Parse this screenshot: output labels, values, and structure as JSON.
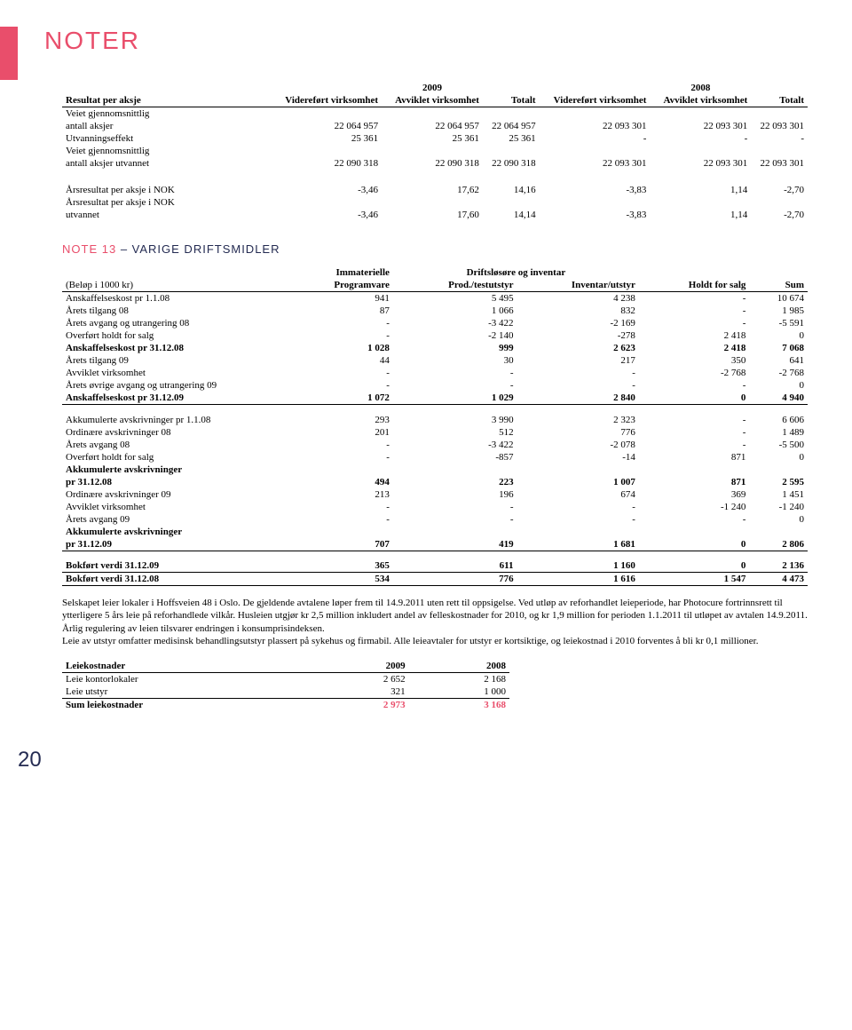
{
  "title": "NOTER",
  "pageNumber": "20",
  "colors": {
    "accent": "#e94e6b",
    "navy": "#242b52"
  },
  "table1": {
    "super2009": "2009",
    "super2008": "2008",
    "headers": [
      "Resultat per aksje",
      "Videreført virksomhet",
      "Avviklet virksomhet",
      "Totalt",
      "Videreført virksomhet",
      "Avviklet virksomhet",
      "Totalt"
    ],
    "rows": [
      {
        "label": "Veiet gjennomsnittlig",
        "sub": true
      },
      {
        "label": "antall aksjer",
        "vals": [
          "22 064 957",
          "22 064 957",
          "22 064 957",
          "22 093 301",
          "22 093 301",
          "22 093 301"
        ]
      },
      {
        "label": "Utvanningseffekt",
        "vals": [
          "25 361",
          "25 361",
          "25 361",
          "-",
          "-",
          "-"
        ]
      },
      {
        "label": "Veiet gjennomsnittlig",
        "sub": true
      },
      {
        "label": "antall aksjer utvannet",
        "vals": [
          "22 090 318",
          "22 090 318",
          "22 090 318",
          "22 093 301",
          "22 093 301",
          "22 093 301"
        ]
      }
    ],
    "rows2": [
      {
        "label": "Årsresultat per aksje i NOK",
        "vals": [
          "-3,46",
          "17,62",
          "14,16",
          "-3,83",
          "1,14",
          "-2,70"
        ]
      },
      {
        "label": "Årsresultat per aksje i NOK",
        "sub": true
      },
      {
        "label": "utvannet",
        "vals": [
          "-3,46",
          "17,60",
          "14,14",
          "-3,83",
          "1,14",
          "-2,70"
        ]
      }
    ]
  },
  "note13": {
    "prefix": "NOTE 13",
    "suffix": "– VARIGE DRIFTSMIDLER",
    "headers": {
      "belop": "(Beløp i 1000 kr)",
      "immat": "Immaterielle",
      "program": "Programvare",
      "driftSuper": "Driftsløsøre og inventar",
      "prod": "Prod./testutstyr",
      "inv": "Inventar/utstyr",
      "holdt": "Holdt for salg",
      "sum": "Sum"
    },
    "block1": [
      {
        "l": "Anskaffelseskost pr 1.1.08",
        "v": [
          "941",
          "5 495",
          "4 238",
          "-",
          "10 674"
        ]
      },
      {
        "l": "Årets tilgang 08",
        "v": [
          "87",
          "1 066",
          "832",
          "-",
          "1 985"
        ]
      },
      {
        "l": "Årets avgang og utrangering 08",
        "v": [
          "-",
          "-3 422",
          "-2 169",
          "-",
          "-5 591"
        ]
      },
      {
        "l": "Overført holdt for salg",
        "v": [
          "-",
          "-2 140",
          "-278",
          "2 418",
          "0"
        ]
      },
      {
        "l": "Anskaffelseskost pr 31.12.08",
        "v": [
          "1 028",
          "999",
          "2 623",
          "2 418",
          "7 068"
        ],
        "b": true
      },
      {
        "l": "Årets tilgang 09",
        "v": [
          "44",
          "30",
          "217",
          "350",
          "641"
        ]
      },
      {
        "l": "Avviklet virksomhet",
        "v": [
          "-",
          "-",
          "-",
          "-2 768",
          "-2 768"
        ]
      },
      {
        "l": "Årets øvrige avgang og utrangering 09",
        "v": [
          "-",
          "-",
          "-",
          "-",
          "0"
        ]
      },
      {
        "l": "Anskaffelseskost pr 31.12.09",
        "v": [
          "1 072",
          "1 029",
          "2 840",
          "0",
          "4 940"
        ],
        "b": true,
        "rule": true
      }
    ],
    "block2": [
      {
        "l": "Akkumulerte avskrivninger pr 1.1.08",
        "v": [
          "293",
          "3 990",
          "2 323",
          "-",
          "6 606"
        ]
      },
      {
        "l": "Ordinære avskrivninger 08",
        "v": [
          "201",
          "512",
          "776",
          "-",
          "1 489"
        ]
      },
      {
        "l": "Årets avgang 08",
        "v": [
          "-",
          "-3 422",
          "-2 078",
          "-",
          "-5 500"
        ]
      },
      {
        "l": "Overført holdt for salg",
        "v": [
          "-",
          "-857",
          "-14",
          "871",
          "0"
        ]
      },
      {
        "l": "Akkumulerte avskrivninger",
        "sub": true,
        "b": true
      },
      {
        "l": "pr 31.12.08",
        "v": [
          "494",
          "223",
          "1 007",
          "871",
          "2 595"
        ],
        "b": true
      },
      {
        "l": "Ordinære avskrivninger 09",
        "v": [
          "213",
          "196",
          "674",
          "369",
          "1 451"
        ]
      },
      {
        "l": "Avviklet virksomhet",
        "v": [
          "-",
          "-",
          "-",
          "-1 240",
          "-1 240"
        ]
      },
      {
        "l": "Årets avgang 09",
        "v": [
          "-",
          "-",
          "-",
          "-",
          "0"
        ]
      },
      {
        "l": "Akkumulerte avskrivninger",
        "sub": true,
        "b": true
      },
      {
        "l": "pr 31.12.09",
        "v": [
          "707",
          "419",
          "1 681",
          "0",
          "2 806"
        ],
        "b": true,
        "rule": true
      }
    ],
    "block3": [
      {
        "l": "Bokført verdi 31.12.09",
        "v": [
          "365",
          "611",
          "1 160",
          "0",
          "2 136"
        ],
        "b": true,
        "rule": true
      },
      {
        "l": "Bokført verdi 31.12.08",
        "v": [
          "534",
          "776",
          "1 616",
          "1 547",
          "4 473"
        ],
        "b": true,
        "rule": true
      }
    ]
  },
  "para": "Selskapet leier lokaler i Hoffsveien 48 i Oslo. De gjeldende avtalene løper frem til 14.9.2011 uten rett til oppsigelse. Ved utløp av reforhandlet leieperiode, har Photocure fortrinnsrett til ytterligere 5 års leie på reforhandlede vilkår. Husleien utgjør kr 2,5 million inkludert andel av felleskostnader for 2010, og kr 1,9 million for perioden 1.1.2011 til utløpet av avtalen 14.9.2011.  Årlig regulering av leien tilsvarer endringen i konsumprisindeksen.\nLeie av utstyr omfatter medisinsk behandlingsutstyr plassert på sykehus og firmabil. Alle leieavtaler for utstyr er kortsiktige, og leiekostnad i 2010 forventes å bli kr 0,1 millioner.",
  "leie": {
    "headers": [
      "Leiekostnader",
      "2009",
      "2008"
    ],
    "rows": [
      {
        "l": "Leie kontorlokaler",
        "v": [
          "2 652",
          "2 168"
        ]
      },
      {
        "l": "Leie utstyr",
        "v": [
          "321",
          "1 000"
        ]
      }
    ],
    "sum": {
      "l": "Sum leiekostnader",
      "v": [
        "2 973",
        "3 168"
      ]
    }
  }
}
